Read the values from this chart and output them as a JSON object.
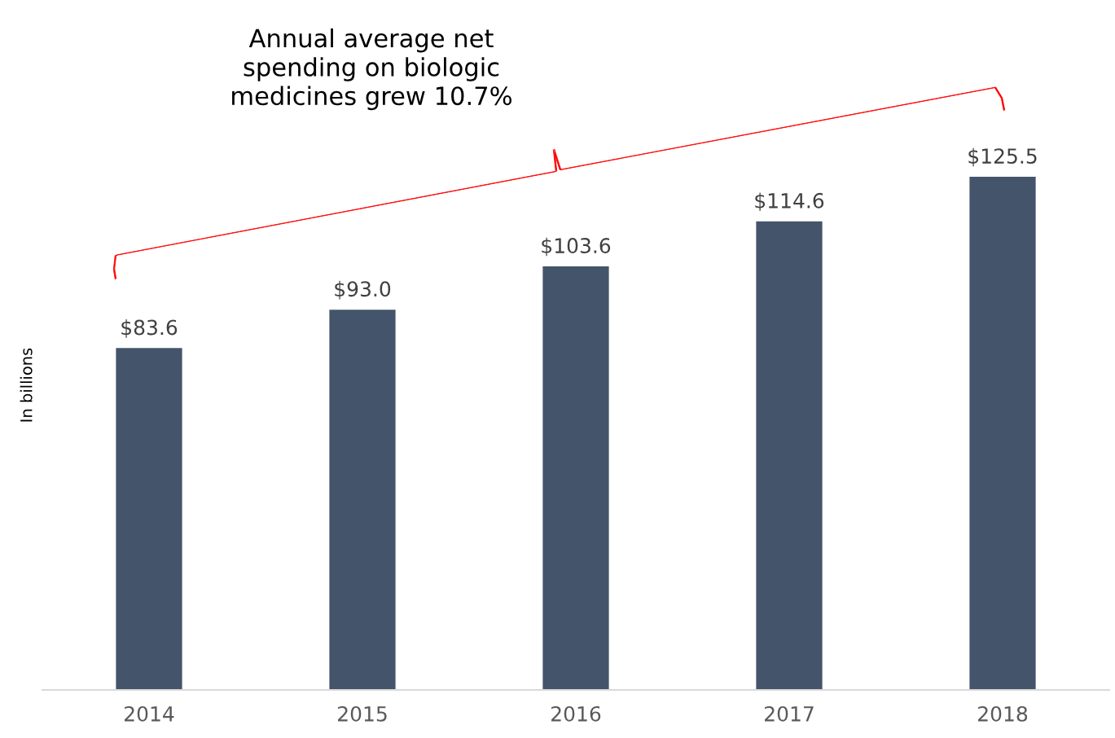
{
  "chart_data": {
    "type": "bar",
    "title": "Annual average net\nspending on biologic\nmedicines grew 10.7%",
    "ylabel": "In billions",
    "categories": [
      "2014",
      "2015",
      "2016",
      "2017",
      "2018"
    ],
    "values": [
      83.6,
      93.0,
      103.6,
      114.6,
      125.5
    ],
    "value_labels": [
      "$83.6",
      "$93.0",
      "$103.6",
      "$114.6",
      "$125.5"
    ],
    "color": "#44546a",
    "tick_labels": "x",
    "grid": false,
    "legend": false
  }
}
